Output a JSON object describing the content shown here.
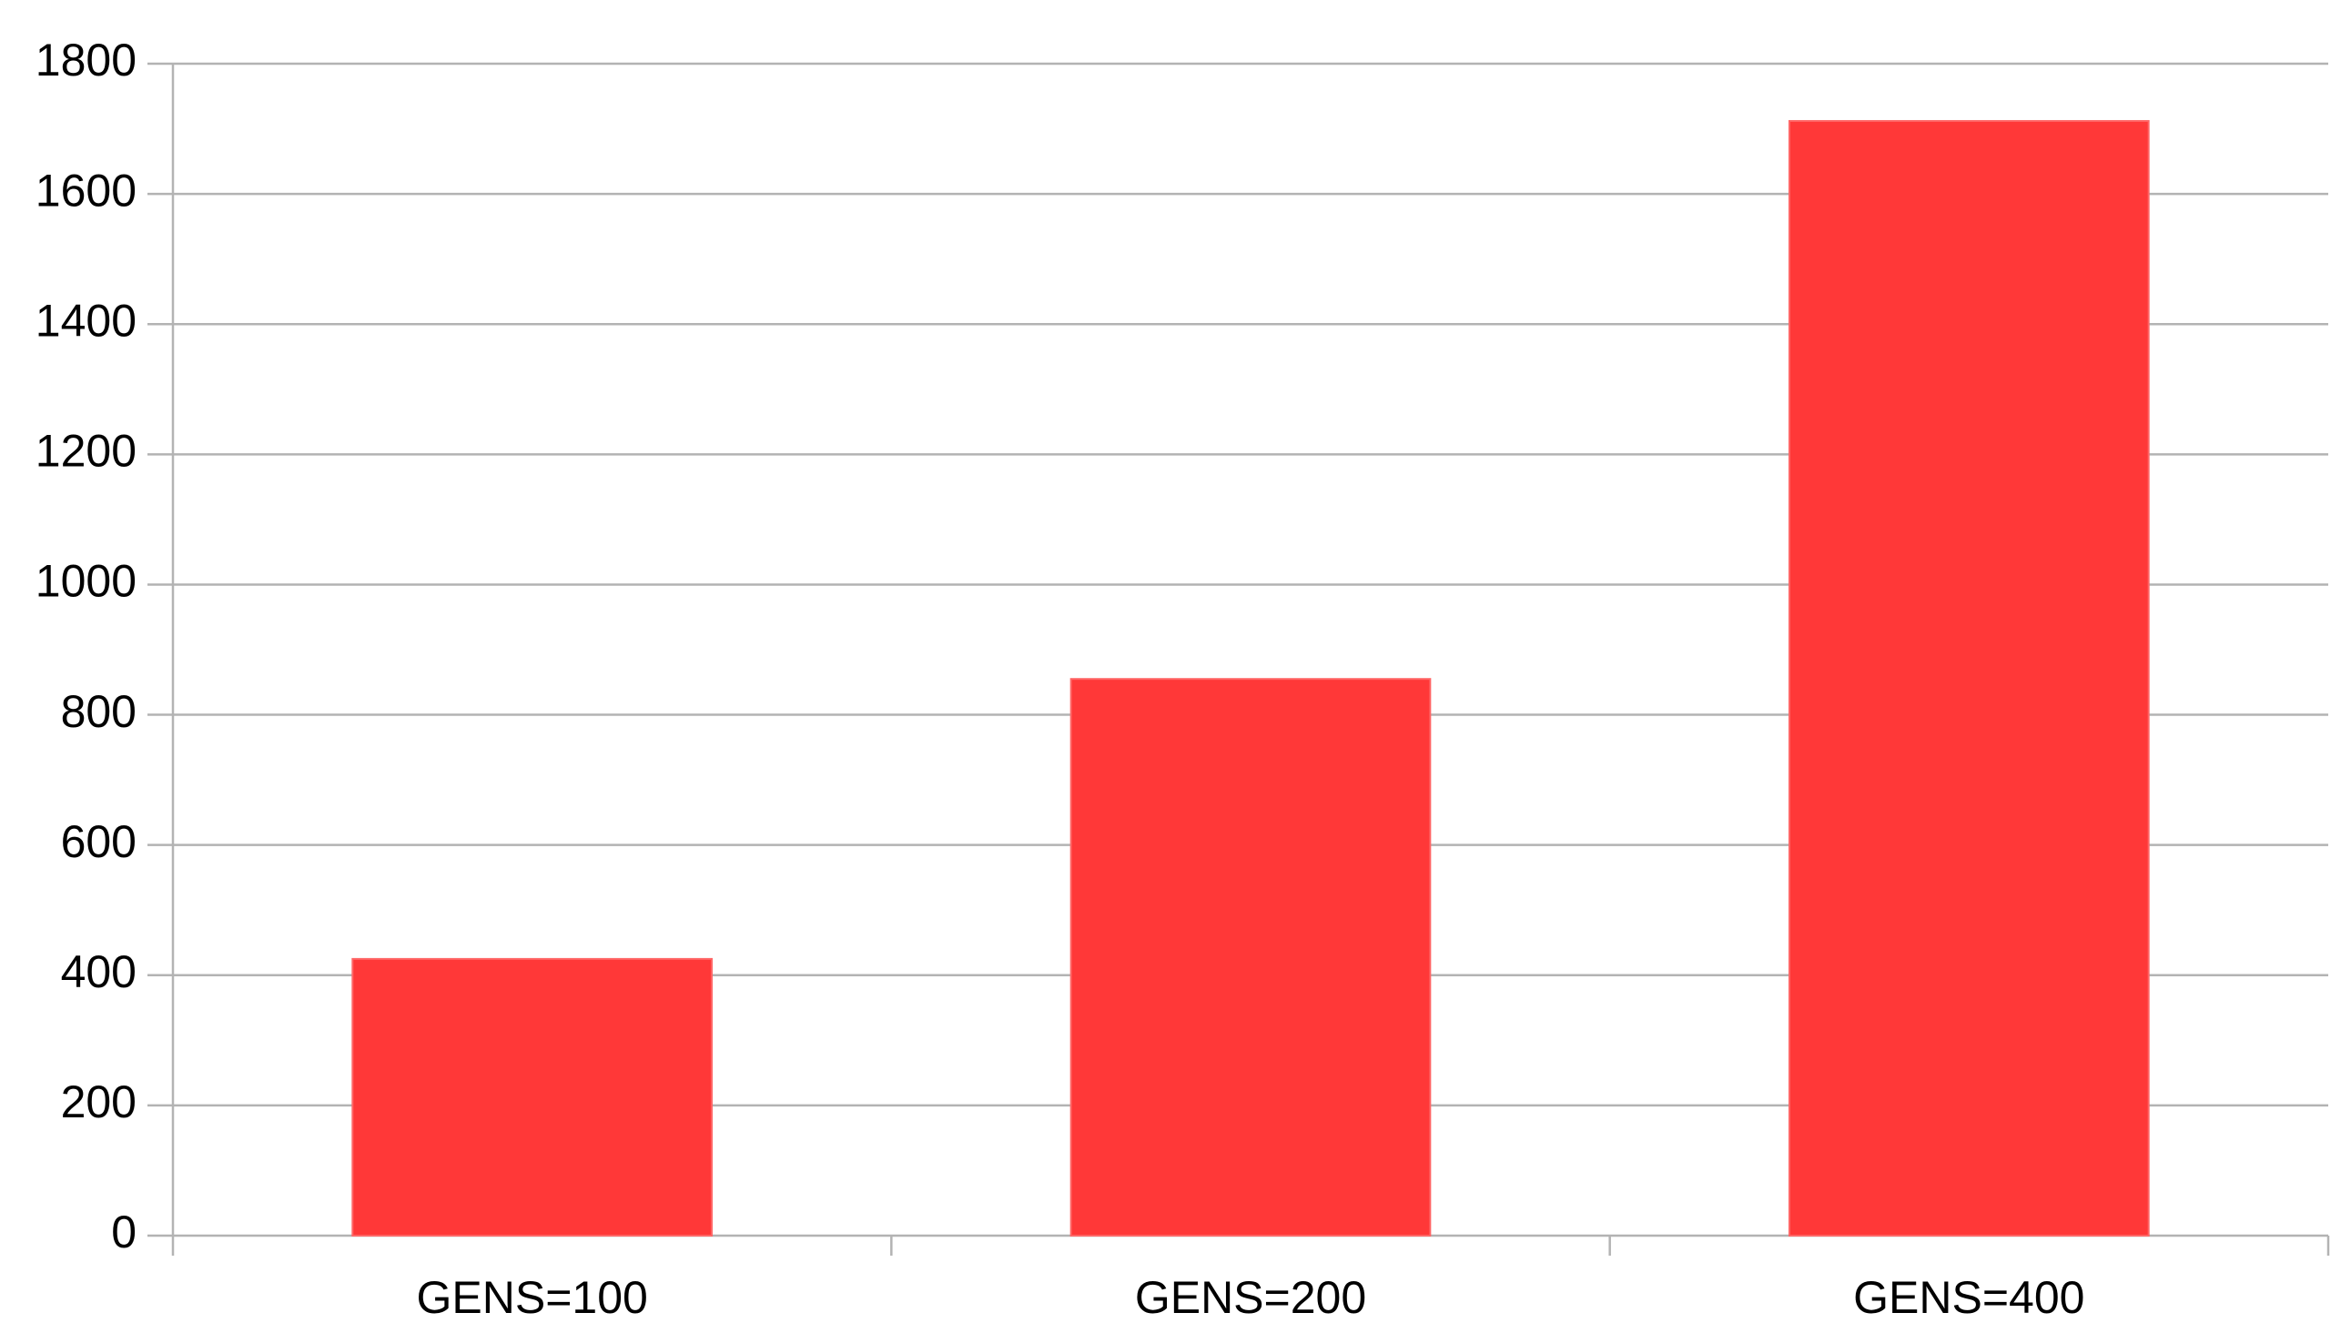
{
  "chart_data": {
    "type": "bar",
    "categories": [
      "GENS=100",
      "GENS=200",
      "GENS=400"
    ],
    "values": [
      425,
      855,
      1712
    ],
    "color": "#ff3838",
    "ylim": [
      0,
      1800
    ],
    "yticks": [
      0,
      200,
      400,
      600,
      800,
      1000,
      1200,
      1400,
      1600,
      1800
    ],
    "grid": true
  }
}
